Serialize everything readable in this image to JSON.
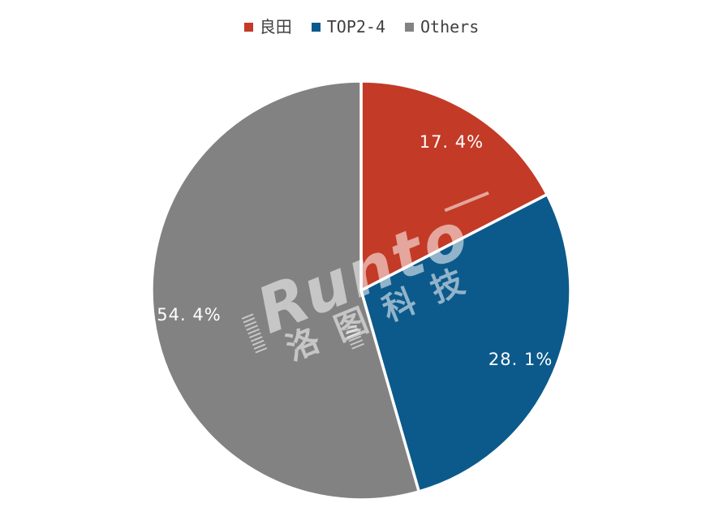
{
  "background_color": "#ffffff",
  "legend": {
    "position": "top",
    "text_color": "#404040",
    "items": [
      {
        "label": "良田",
        "color": "#c33a27"
      },
      {
        "label": "TOP2-4",
        "color": "#0c5a8b"
      },
      {
        "label": "Others",
        "color": "#828282"
      }
    ]
  },
  "watermark": {
    "en_text": "Runto",
    "cn_text": "洛图科技",
    "color": "rgba(255,255,255,0.55)"
  },
  "chart_data": {
    "type": "pie",
    "title": "",
    "categories": [
      "良田",
      "TOP2-4",
      "Others"
    ],
    "values": [
      17.4,
      28.1,
      54.4
    ],
    "unit": "%",
    "labels": [
      "17. 4%",
      "28. 1%",
      "54. 4%"
    ],
    "colors": [
      "#c33a27",
      "#0c5a8b",
      "#828282"
    ],
    "start_angle_deg": 0,
    "direction": "clockwise",
    "legend_position": "top",
    "slice_border_color": "#ffffff",
    "slice_border_width": 3.5,
    "label_color": "#ffffff"
  }
}
